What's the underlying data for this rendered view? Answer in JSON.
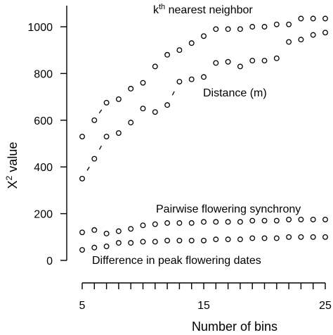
{
  "chart_data": {
    "type": "scatter",
    "xlabel": "Number of bins",
    "ylabel_base": "X",
    "ylabel_sup": "2",
    "ylabel_rest": " value",
    "xlim": [
      5,
      25
    ],
    "ylim": [
      0,
      1100
    ],
    "x_ticks": [
      5,
      15,
      25
    ],
    "x_minor_ticks": [
      5,
      6,
      7,
      8,
      9,
      10,
      11,
      12,
      13,
      14,
      15,
      16,
      17,
      18,
      19,
      20,
      21,
      22,
      23,
      24,
      25
    ],
    "y_ticks": [
      0,
      200,
      400,
      600,
      800,
      1000
    ],
    "legend": "none",
    "grid": false,
    "x": [
      5,
      6,
      7,
      8,
      9,
      10,
      11,
      12,
      13,
      14,
      15,
      16,
      17,
      18,
      19,
      20,
      21,
      22,
      23,
      24,
      25
    ],
    "series": [
      {
        "label_parts": [
          "k",
          "th",
          " nearest neighbor"
        ],
        "values": [
          530,
          600,
          675,
          690,
          735,
          760,
          830,
          880,
          900,
          930,
          960,
          990,
          990,
          990,
          1000,
          1000,
          1010,
          1010,
          1035,
          1035,
          1035
        ]
      },
      {
        "name": "Distance (m)",
        "values": [
          350,
          435,
          530,
          545,
          590,
          650,
          635,
          665,
          765,
          775,
          785,
          845,
          850,
          830,
          855,
          855,
          865,
          935,
          945,
          965,
          975
        ]
      },
      {
        "name": "Pairwise flowering synchrony",
        "values": [
          120,
          130,
          115,
          125,
          135,
          150,
          155,
          160,
          160,
          160,
          165,
          165,
          165,
          165,
          170,
          170,
          170,
          175,
          175,
          175,
          175
        ]
      },
      {
        "name": "Difference in peak flowering dates",
        "values": [
          45,
          55,
          60,
          75,
          75,
          80,
          80,
          85,
          85,
          85,
          85,
          90,
          90,
          90,
          95,
          95,
          95,
          100,
          100,
          100,
          100
        ]
      }
    ]
  }
}
